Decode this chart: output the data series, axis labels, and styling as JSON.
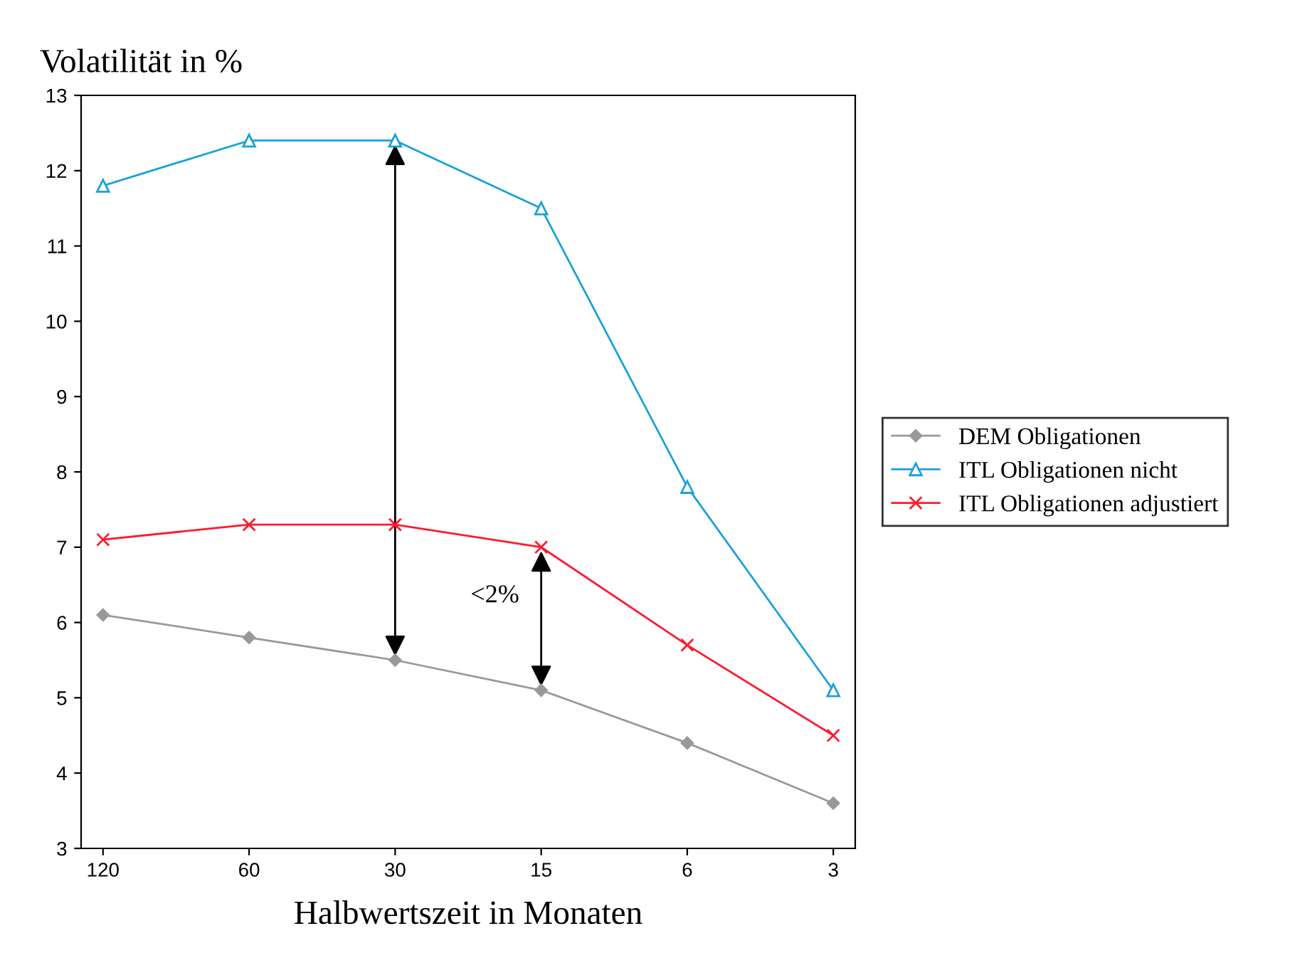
{
  "chart_data": {
    "type": "line",
    "title": "Volatilität in %",
    "xlabel": "Halbwertszeit in Monaten",
    "categories": [
      "120",
      "60",
      "30",
      "15",
      "6",
      "3"
    ],
    "series": [
      {
        "name": "DEM Obligationen",
        "color": "#999999",
        "marker": "diamond",
        "values": [
          6.1,
          5.8,
          5.5,
          5.1,
          4.4,
          3.6
        ]
      },
      {
        "name": "ITL Obligationen nicht",
        "color": "#1ba1d8",
        "marker": "triangle",
        "values": [
          11.8,
          12.4,
          12.4,
          11.5,
          7.8,
          5.1
        ]
      },
      {
        "name": "ITL Obligationen adjustiert",
        "color": "#ff1a2e",
        "marker": "cross",
        "values": [
          7.1,
          7.3,
          7.3,
          7.0,
          5.7,
          4.5
        ]
      }
    ],
    "annotations": [
      "<2%"
    ],
    "ylim": [
      3,
      13
    ],
    "yticks": [
      3,
      4,
      5,
      6,
      7,
      8,
      9,
      10,
      11,
      12,
      13
    ],
    "grid": false,
    "legend": "right",
    "line_style": "solid"
  }
}
